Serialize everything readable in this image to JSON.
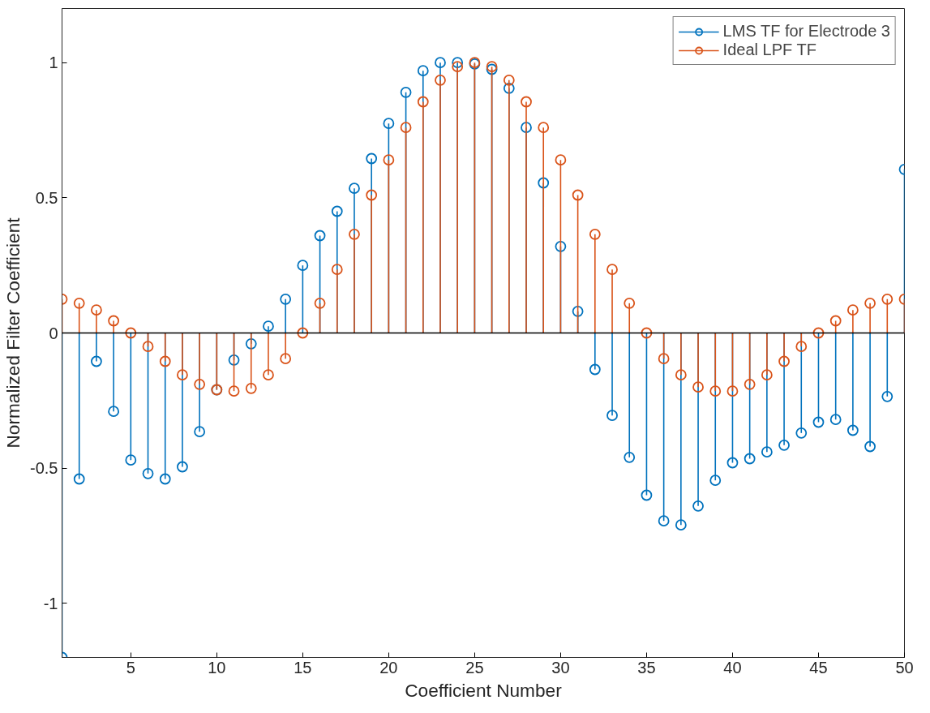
{
  "chart_data": {
    "type": "lollipop",
    "xlabel": "Coefficient Number",
    "ylabel": "Normalized Filter Coefficient",
    "x": [
      1,
      2,
      3,
      4,
      5,
      6,
      7,
      8,
      9,
      10,
      11,
      12,
      13,
      14,
      15,
      16,
      17,
      18,
      19,
      20,
      21,
      22,
      23,
      24,
      25,
      26,
      27,
      28,
      29,
      30,
      31,
      32,
      33,
      34,
      35,
      36,
      37,
      38,
      39,
      40,
      41,
      42,
      43,
      44,
      45,
      46,
      47,
      48,
      49,
      50
    ],
    "series": [
      {
        "name": "LMS TF for Electrode 3",
        "color": "#0072bd",
        "values": [
          -1.2,
          -0.54,
          -0.105,
          -0.29,
          -0.47,
          -0.52,
          -0.54,
          -0.495,
          -0.365,
          -0.21,
          -0.1,
          -0.04,
          0.025,
          0.125,
          0.25,
          0.36,
          0.45,
          0.535,
          0.645,
          0.775,
          0.89,
          0.97,
          1.0,
          1.0,
          0.995,
          0.975,
          0.905,
          0.76,
          0.555,
          0.32,
          0.08,
          -0.135,
          -0.305,
          -0.46,
          -0.6,
          -0.695,
          -0.71,
          -0.64,
          -0.545,
          -0.48,
          -0.465,
          -0.44,
          -0.415,
          -0.37,
          -0.33,
          -0.32,
          -0.36,
          -0.42,
          -0.235,
          0.605
        ]
      },
      {
        "name": "Ideal LPF TF",
        "color": "#d95319",
        "values": [
          0.125,
          0.11,
          0.085,
          0.045,
          0.0,
          -0.05,
          -0.105,
          -0.155,
          -0.19,
          -0.21,
          -0.215,
          -0.205,
          -0.155,
          -0.095,
          0.0,
          0.11,
          0.235,
          0.365,
          0.51,
          0.64,
          0.76,
          0.855,
          0.935,
          0.985,
          1.0,
          0.985,
          0.935,
          0.855,
          0.76,
          0.64,
          0.51,
          0.365,
          0.235,
          0.11,
          0.0,
          -0.095,
          -0.155,
          -0.2,
          -0.215,
          -0.215,
          -0.19,
          -0.155,
          -0.105,
          -0.05,
          0.0,
          0.045,
          0.085,
          0.11,
          0.125,
          0.125
        ]
      }
    ],
    "xlim": [
      1,
      50
    ],
    "xticks": [
      5,
      10,
      15,
      20,
      25,
      30,
      35,
      40,
      45,
      50
    ],
    "ylim": [
      -1.2,
      1.2
    ],
    "yticks": [
      -1,
      -0.5,
      0,
      0.5,
      1
    ],
    "ref_lines": [
      {
        "axis": "y",
        "value": 0,
        "color": "#000000"
      }
    ],
    "grid": false,
    "legend": "top right",
    "marker": "circle"
  }
}
